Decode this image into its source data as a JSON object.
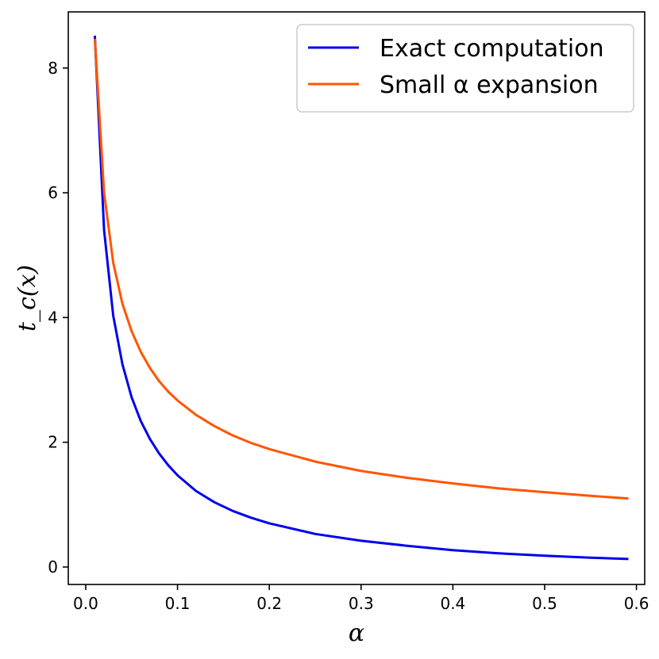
{
  "chart_data": {
    "type": "line",
    "title": "",
    "xlabel": "α",
    "ylabel": "t_c(x)",
    "xlim": [
      -0.019,
      0.609
    ],
    "ylim": [
      -0.28,
      8.9
    ],
    "xticks": [
      0.0,
      0.1,
      0.2,
      0.3,
      0.4,
      0.5,
      0.6
    ],
    "xtick_labels": [
      "0.0",
      "0.1",
      "0.2",
      "0.3",
      "0.4",
      "0.5",
      "0.6"
    ],
    "yticks": [
      0,
      2,
      4,
      6,
      8
    ],
    "ytick_labels": [
      "0",
      "2",
      "4",
      "6",
      "8"
    ],
    "grid": false,
    "legend_position": "top-right",
    "series": [
      {
        "name": "Exact computation",
        "color": "#0000ee",
        "x": [
          0.01,
          0.02,
          0.03,
          0.04,
          0.05,
          0.06,
          0.07,
          0.08,
          0.09,
          0.1,
          0.12,
          0.14,
          0.16,
          0.18,
          0.2,
          0.25,
          0.3,
          0.35,
          0.4,
          0.45,
          0.5,
          0.55,
          0.59
        ],
        "y": [
          8.5,
          5.4,
          4.03,
          3.25,
          2.72,
          2.34,
          2.05,
          1.82,
          1.63,
          1.47,
          1.22,
          1.04,
          0.9,
          0.79,
          0.7,
          0.53,
          0.42,
          0.34,
          0.27,
          0.22,
          0.18,
          0.15,
          0.13
        ]
      },
      {
        "name": "Small α expansion",
        "color": "#ff5500",
        "x": [
          0.01,
          0.02,
          0.03,
          0.04,
          0.05,
          0.06,
          0.07,
          0.08,
          0.09,
          0.1,
          0.12,
          0.14,
          0.16,
          0.18,
          0.2,
          0.25,
          0.3,
          0.35,
          0.4,
          0.45,
          0.5,
          0.55,
          0.59
        ],
        "y": [
          8.45,
          6.0,
          4.88,
          4.22,
          3.78,
          3.45,
          3.19,
          2.98,
          2.81,
          2.67,
          2.44,
          2.26,
          2.11,
          1.99,
          1.89,
          1.69,
          1.54,
          1.43,
          1.34,
          1.26,
          1.2,
          1.14,
          1.1
        ]
      }
    ]
  }
}
